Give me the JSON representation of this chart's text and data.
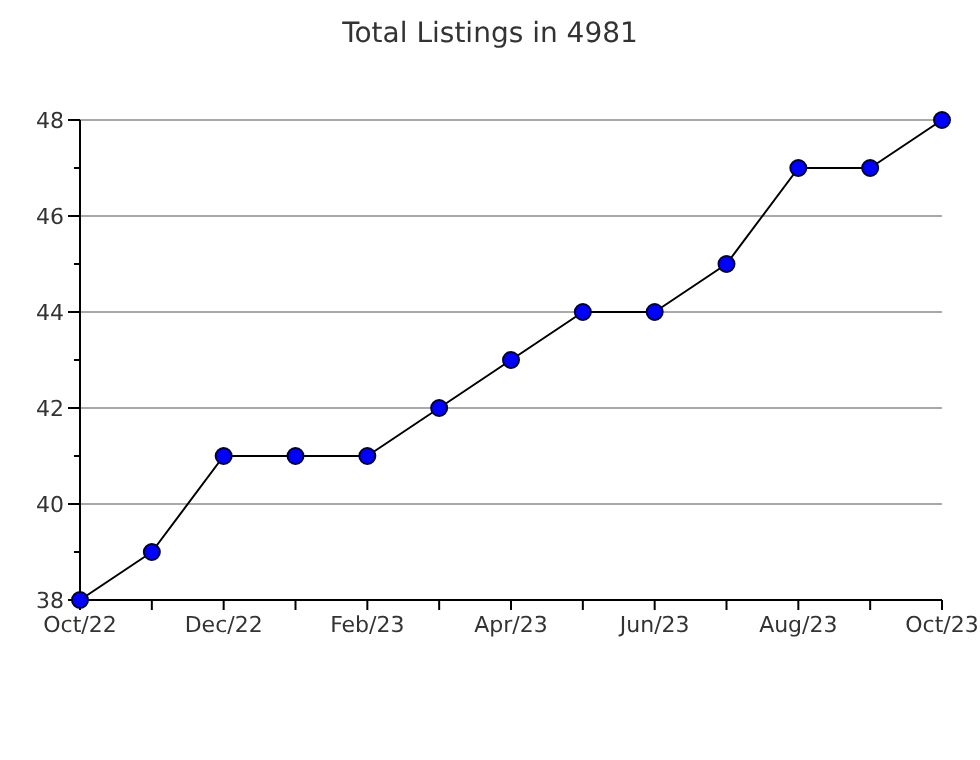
{
  "chart_data": {
    "type": "line",
    "title": "Total Listings in 4981",
    "categories": [
      "Oct/22",
      null,
      "Dec/22",
      null,
      "Feb/23",
      null,
      "Apr/23",
      null,
      "Jun/23",
      null,
      "Aug/23",
      null,
      "Oct/23"
    ],
    "series": [
      {
        "color": "#0000ff",
        "values": [
          38,
          39,
          41,
          41,
          41,
          42,
          43,
          44,
          44,
          45,
          47,
          47,
          48
        ]
      }
    ],
    "ylim": [
      38,
      48
    ],
    "yticks": [
      38,
      {
        "value": 39,
        "label": null
      },
      40,
      {
        "value": 41,
        "label": null
      },
      42,
      {
        "value": 43,
        "label": null
      },
      44,
      {
        "value": 45,
        "label": null
      },
      46,
      {
        "value": 47,
        "label": null
      },
      48
    ],
    "grid": "y",
    "marker": "circle",
    "line_style": "solid"
  }
}
